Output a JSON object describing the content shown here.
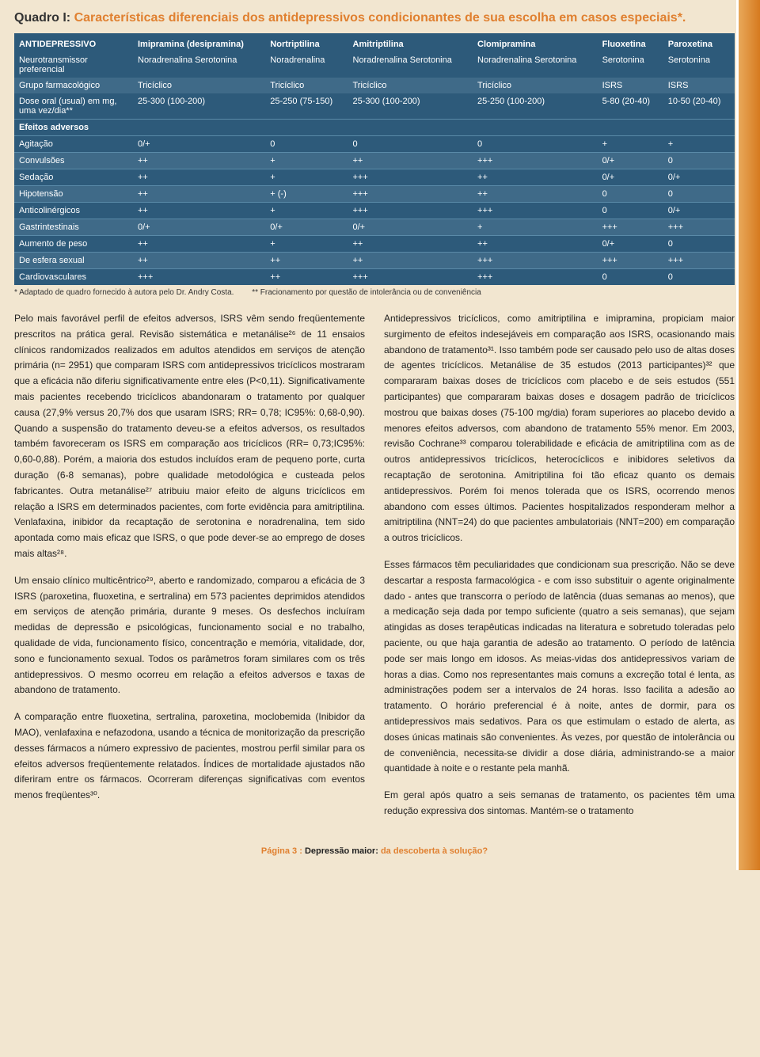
{
  "colors": {
    "page_bg": "#f2e6d0",
    "table_bg": "#2d5a7a",
    "table_alt_bg": "#3f6a88",
    "orange": "#e08030",
    "stripe_from": "#e8a85a",
    "stripe_to": "#d67a1f",
    "text": "#333"
  },
  "quadro": {
    "label": "Quadro I: ",
    "title": "Características diferenciais dos antidepressivos condicionantes de sua escolha em casos especiais*."
  },
  "table": {
    "headers": [
      "ANTIDEPRESSIVO",
      "Imipramina (desipramina)",
      "Nortriptilina",
      "Amitriptilina",
      "Clomipramina",
      "Fluoxetina",
      "Paroxetina"
    ],
    "info_rows": [
      {
        "label": "Neurotransmissor preferencial",
        "cells": [
          "Noradrenalina Serotonina",
          "Noradrenalina",
          "Noradrenalina Serotonina",
          "Noradrenalina Serotonina",
          "Serotonina",
          "Serotonina"
        ]
      },
      {
        "label": "Grupo farmacológico",
        "cells": [
          "Tricíclico",
          "Tricíclico",
          "Tricíclico",
          "Tricíclico",
          "ISRS",
          "ISRS"
        ]
      },
      {
        "label": "Dose oral (usual) em mg, uma vez/dia**",
        "cells": [
          "25-300 (100-200)",
          "25-250 (75-150)",
          "25-300 (100-200)",
          "25-250 (100-200)",
          "5-80 (20-40)",
          "10-50 (20-40)"
        ]
      }
    ],
    "effects_header": "Efeitos adversos",
    "effects": [
      {
        "label": "Agitação",
        "cells": [
          "0/+",
          "0",
          "0",
          "0",
          "+",
          "+"
        ]
      },
      {
        "label": "Convulsões",
        "cells": [
          "++",
          "+",
          "++",
          "+++",
          "0/+",
          "0"
        ]
      },
      {
        "label": "Sedação",
        "cells": [
          "++",
          "+",
          "+++",
          "++",
          "0/+",
          "0/+"
        ]
      },
      {
        "label": "Hipotensão",
        "cells": [
          "++",
          "+ (-)",
          "+++",
          "++",
          "0",
          "0"
        ]
      },
      {
        "label": "Anticolinérgicos",
        "cells": [
          "++",
          "+",
          "+++",
          "+++",
          "0",
          "0/+"
        ]
      },
      {
        "label": "Gastrintestinais",
        "cells": [
          "0/+",
          "0/+",
          "0/+",
          "+",
          "+++",
          "+++"
        ]
      },
      {
        "label": "Aumento de peso",
        "cells": [
          "++",
          "+",
          "++",
          "++",
          "0/+",
          "0"
        ]
      },
      {
        "label": "De esfera sexual",
        "cells": [
          "++",
          "++",
          "++",
          "+++",
          "+++",
          "+++"
        ]
      },
      {
        "label": "Cardiovasculares",
        "cells": [
          "+++",
          "++",
          "+++",
          "+++",
          "0",
          "0"
        ]
      }
    ]
  },
  "footnotes": {
    "a": "* Adaptado de quadro fornecido à autora pelo Dr. Andry Costa.",
    "b": "** Fracionamento por questão de intolerância ou de conveniência"
  },
  "body": {
    "col1": {
      "p1": "Pelo mais favorável perfil de efeitos adversos, ISRS vêm sendo freqüentemente prescritos na prática geral. Revisão sistemática e metanálise²⁶ de 11 ensaios clínicos randomizados realizados em adultos atendidos em serviços de atenção primária (n= 2951) que comparam ISRS com antidepressivos tricíclicos mostraram que a eficácia não diferiu significativamente entre eles (P<0,11). Significativamente mais pacientes recebendo tricíclicos abandonaram o tratamento por qualquer causa (27,9% versus 20,7% dos que usaram ISRS; RR= 0,78; IC95%: 0,68-0,90). Quando a suspensão do tratamento deveu-se a efeitos adversos, os resultados também favoreceram os ISRS em comparação aos tricíclicos (RR= 0,73;IC95%: 0,60-0,88). Porém, a maioria dos estudos incluídos eram de pequeno porte, curta duração (6-8 semanas), pobre qualidade metodológica e custeada pelos fabricantes. Outra metanálise²⁷ atribuiu maior efeito de alguns tricíclicos em relação a ISRS em determinados pacientes, com forte evidência para amitriptilina. Venlafaxina, inibidor da recaptação de serotonina e noradrenalina, tem sido apontada como mais eficaz que ISRS, o que pode dever-se ao emprego de doses mais altas²⁸.",
      "p2": "Um ensaio clínico multicêntrico²⁹, aberto e randomizado, comparou a eficácia de 3 ISRS (paroxetina, fluoxetina, e sertralina) em 573 pacientes deprimidos atendidos em serviços de atenção primária, durante 9 meses. Os desfechos incluíram medidas de depressão e psicológicas, funcionamento social e no trabalho, qualidade de vida, funcionamento físico, concentração e memória, vitalidade, dor, sono e funcionamento sexual. Todos os parâmetros foram similares com os três antidepressivos. O mesmo ocorreu em relação a efeitos adversos e taxas de abandono de tratamento.",
      "p3": "A comparação entre fluoxetina, sertralina, paroxetina, moclobemida (Inibidor da MAO), venlafaxina e nefazodona, usando a técnica de monitorização da prescrição desses fármacos a número expressivo de pacientes, mostrou perfil similar para os efeitos adversos freqüentemente relatados. Índices de mortalidade ajustados não diferiram entre os fármacos. Ocorreram diferenças significativas com eventos menos freqüentes³⁰."
    },
    "col2": {
      "p1": "Antidepressivos tricíclicos, como amitriptilina e imipramina, propiciam maior surgimento de efeitos indesejáveis em comparação aos ISRS, ocasionando mais abandono de tratamento³¹. Isso também pode ser causado pelo uso de altas doses de agentes tricíclicos. Metanálise de 35 estudos (2013 participantes)³² que compararam baixas doses de tricíclicos com placebo e de seis estudos (551 participantes) que compararam baixas doses e dosagem padrão de tricíclicos mostrou que baixas doses (75-100 mg/dia) foram superiores ao placebo devido a menores efeitos adversos, com abandono de tratamento 55% menor. Em 2003, revisão Cochrane³³ comparou tolerabilidade e eficácia de amitriptilina com as de outros antidepressivos tricíclicos, heterocíclicos e inibidores seletivos da recaptação de serotonina. Amitriptilina foi tão eficaz quanto os demais antidepressivos. Porém foi menos tolerada que os ISRS, ocorrendo menos abandono com esses últimos. Pacientes hospitalizados responderam melhor a amitriptilina (NNT=24) do que pacientes ambulatoriais (NNT=200) em comparação a outros tricíclicos.",
      "p2": "Esses fármacos têm peculiaridades que condicionam sua prescrição. Não se deve descartar a resposta farmacológica - e com isso substituir o agente originalmente dado - antes que transcorra o período de latência (duas semanas ao menos), que a medicação seja dada por tempo suficiente (quatro a seis semanas), que sejam atingidas as doses terapêuticas indicadas na literatura e sobretudo toleradas pelo paciente, ou que haja garantia de adesão ao tratamento. O período de latência pode ser mais longo em idosos. As meias-vidas dos antidepressivos variam de horas a dias. Como nos representantes mais comuns a excreção total é lenta, as administrações podem ser a intervalos de 24 horas. Isso facilita a adesão ao tratamento. O horário preferencial é à noite, antes de dormir, para os antidepressivos mais sedativos. Para os que estimulam o estado de alerta, as doses únicas matinais são convenientes. Às vezes, por questão de intolerância ou de conveniência, necessita-se dividir a dose diária, administrando-se a maior quantidade à noite e o restante pela manhã.",
      "p3": "Em geral após quatro a seis semanas de tratamento, os pacientes têm uma redução expressiva dos sintomas. Mantém-se o tratamento"
    }
  },
  "footer": {
    "page": "Página 3 :",
    "title_black": " Depressão maior:",
    "title_orange": " da descoberta à solução?"
  }
}
